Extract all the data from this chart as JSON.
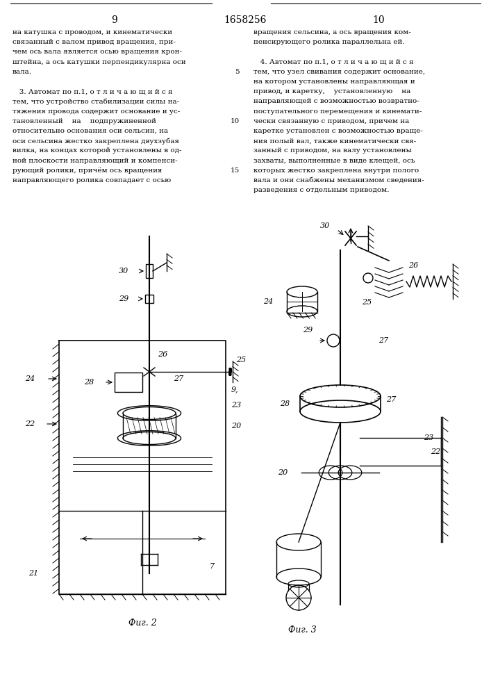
{
  "page_number_left": "9",
  "page_number_center": "1658256",
  "page_number_right": "10",
  "background_color": "#ffffff",
  "text_color": "#000000",
  "left_column_lines": [
    "на катушка с проводом, и кинематически",
    "связанный с валом привод вращения, при-",
    "чем ось вала является осью вращения крон-",
    "штейна, а ось катушки перпендикулярна оси",
    "вала.",
    "",
    "   3. Автомат по п.1, о т л и ч а ю щ и й с я",
    "тем, что устройство стабилизации силы на-",
    "тяжения провода содержит основание и ус-",
    "тановленный    на    подпружиненной",
    "относительно основания оси сельсин, на",
    "оси сельсина жестко закреплена двухзубая",
    "вилка, на концах которой установлены в од-",
    "ной плоскости направляющий и компенси-",
    "рующий ролики, причём ось вращения",
    "направляющего ролика совпадает с осью"
  ],
  "right_column_lines": [
    "вращения сельсина, а ось вращения ком-",
    "пенсирующего ролика параллельна ей.",
    "",
    "   4. Автомат по п.1, о т л и ч а ю щ и й с я",
    "тем, что узел свивания содержит основание,",
    "на котором установлены направляющая и",
    "привод, и каретку,    установленную    на",
    "направляющей с возможностью возвратно-",
    "поступательного перемещения и кинемати-",
    "чески связанную с приводом, причем на",
    "каретке установлен с возможностью враще-",
    "ния полый вал, также кинематически свя-",
    "занный с приводом, на валу установлены",
    "захваты, выполненные в виде клещей, ось",
    "которых жестко закреплена внутри полого",
    "вала и они снабжены механизмом сведения-",
    "разведения с отдельным приводом."
  ],
  "line_num_5_row": 4,
  "line_num_10_row": 9,
  "line_num_15_row": 14,
  "fig2_caption": "Фиг. 2",
  "fig3_caption": "Фиг. 3"
}
